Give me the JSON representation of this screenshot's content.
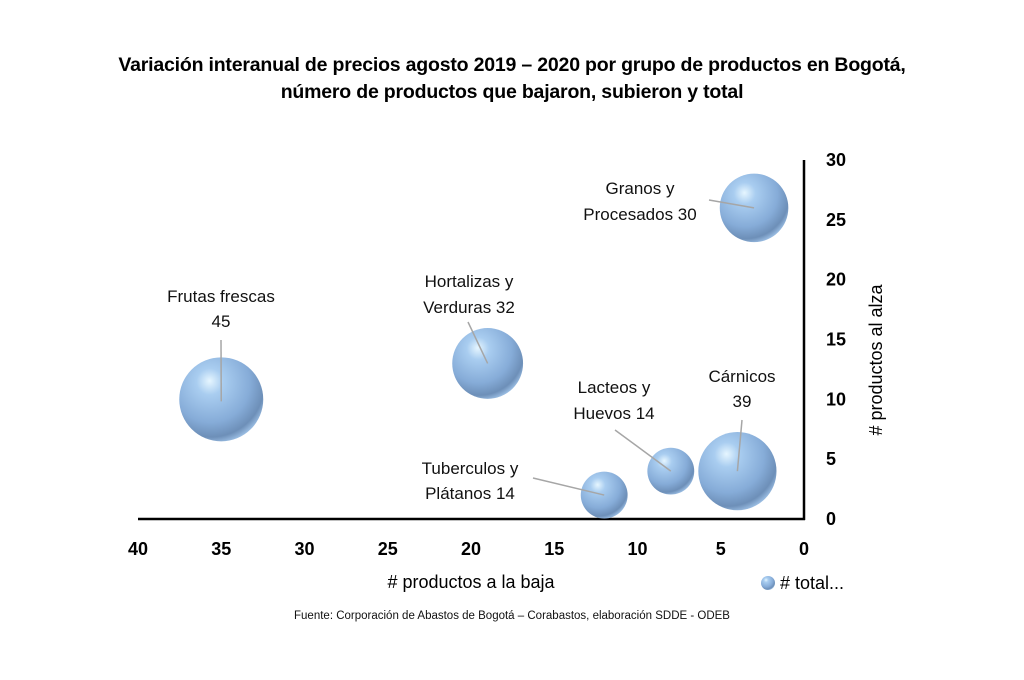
{
  "title_lines": [
    "Variación interanual de precios agosto 2019 – 2020 por grupo de productos en Bogotá,",
    "número de productos que bajaron, subieron y total"
  ],
  "source": "Fuente: Corporación de Abastos de Bogotá – Corabastos, elaboración SDDE - ODEB",
  "colors": {
    "bubble": "#8db3e2",
    "bubble_highlight": "#dff0ff",
    "bubble_shadow": "#5a7fa8",
    "axis": "#000000",
    "leader": "#a6a6a6"
  },
  "chart_data": {
    "type": "bubble",
    "title": "Variación interanual de precios agosto 2019 – 2020 por grupo de productos en Bogotá, número de productos que bajaron, subieron y total",
    "xlabel": "# productos a la baja",
    "ylabel": "# productos al alza",
    "xlim": [
      0,
      40
    ],
    "ylim": [
      0,
      30
    ],
    "x_reversed": true,
    "y_axis_side": "right",
    "x_ticks": [
      40,
      35,
      30,
      25,
      20,
      15,
      10,
      5,
      0
    ],
    "y_ticks": [
      0,
      5,
      10,
      15,
      20,
      25,
      30
    ],
    "grid": false,
    "legend": {
      "position": "bottom-right",
      "entries": [
        "# total..."
      ]
    },
    "series": [
      {
        "name": "# total...",
        "points": [
          {
            "label_line1": "Frutas frescas",
            "label_line2": "45",
            "x": 35,
            "y": 10,
            "size": 45
          },
          {
            "label_line1": "Hortalizas y",
            "label_line2": "Verduras 32",
            "x": 19,
            "y": 13,
            "size": 32
          },
          {
            "label_line1": "Tuberculos y",
            "label_line2": "Plátanos 14",
            "x": 12,
            "y": 2,
            "size": 14
          },
          {
            "label_line1": "Lacteos y",
            "label_line2": "Huevos 14",
            "x": 8,
            "y": 4,
            "size": 14
          },
          {
            "label_line1": "Cárnicos",
            "label_line2": "39",
            "x": 4,
            "y": 4,
            "size": 39
          },
          {
            "label_line1": "Granos y",
            "label_line2": "Procesados 30",
            "x": 3,
            "y": 26,
            "size": 30
          }
        ]
      }
    ]
  }
}
